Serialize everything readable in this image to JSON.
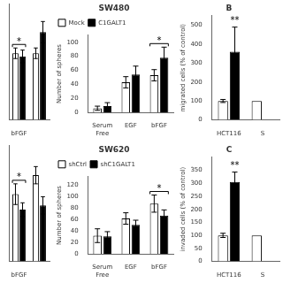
{
  "chart_data": [
    {
      "type": "bar",
      "categories": [
        "bFGF",
        null
      ],
      "series": [
        {
          "color": "#ffffff",
          "values": [
            63,
            63
          ],
          "errors": [
            5,
            5
          ]
        },
        {
          "color": "#000000",
          "values": [
            60,
            83
          ],
          "errors": [
            6,
            10
          ]
        }
      ],
      "ylim": [
        0,
        110
      ],
      "tick_labels": "x",
      "grid": false,
      "annotations": [
        {
          "text": "*",
          "category": "bFGF"
        }
      ]
    },
    {
      "type": "bar",
      "title": "SW480",
      "ylabel": "Number of spheres",
      "categories": [
        "Serum\nFree",
        "EGF",
        "bFGF"
      ],
      "series": [
        {
          "name": "Mock",
          "color": "#ffffff",
          "values": [
            6,
            43,
            53
          ],
          "errors": [
            3,
            8,
            8
          ]
        },
        {
          "name": "C1GALT1",
          "color": "#000000",
          "values": [
            9,
            54,
            78
          ],
          "errors": [
            5,
            12,
            15
          ]
        }
      ],
      "ylim": [
        0,
        110
      ],
      "yticks": [
        0,
        20,
        40,
        60,
        80,
        100
      ],
      "grid": false,
      "legend": "upper left",
      "annotations": [
        {
          "text": "*",
          "category": "bFGF"
        }
      ]
    },
    {
      "type": "bar",
      "title": "B",
      "ylabel": "migrated cells (% of control)",
      "categories": [
        "HCT116",
        "S"
      ],
      "series": [
        {
          "color": "#ffffff",
          "values": [
            100,
            100
          ],
          "errors": [
            8,
            null
          ]
        },
        {
          "name": "C1GALT1",
          "color": "#000000",
          "values": [
            360,
            null
          ],
          "errors": [
            130,
            null
          ]
        }
      ],
      "ylim": [
        0,
        550
      ],
      "yticks": [
        0,
        100,
        200,
        300,
        400,
        500
      ],
      "grid": false,
      "annotations": [
        {
          "text": "**",
          "category": "HCT116",
          "series": "C1GALT1"
        }
      ]
    },
    {
      "type": "bar",
      "categories": [
        "bFGF",
        null
      ],
      "series": [
        {
          "color": "#ffffff",
          "values": [
            78,
            100
          ],
          "errors": [
            12,
            10
          ]
        },
        {
          "color": "#000000",
          "values": [
            60,
            65
          ],
          "errors": [
            8,
            10
          ]
        }
      ],
      "ylim": [
        0,
        135
      ],
      "tick_labels": "x",
      "grid": false,
      "annotations": [
        {
          "text": "*",
          "category": "bFGF"
        }
      ]
    },
    {
      "type": "bar",
      "title": "SW620",
      "ylabel": "Number of spheres",
      "categories": [
        "Serum\nFree",
        "EGF",
        "bFGF"
      ],
      "series": [
        {
          "name": "shCtrl",
          "color": "#ffffff",
          "values": [
            32,
            62,
            88
          ],
          "errors": [
            12,
            10,
            15
          ]
        },
        {
          "name": "shC1GALT1",
          "color": "#000000",
          "values": [
            31,
            51,
            67
          ],
          "errors": [
            8,
            8,
            10
          ]
        }
      ],
      "ylim": [
        0,
        135
      ],
      "yticks": [
        0,
        20,
        40,
        60,
        80,
        100,
        120
      ],
      "grid": false,
      "legend": "upper left",
      "annotations": [
        {
          "text": "*",
          "category": "bFGF"
        }
      ]
    },
    {
      "type": "bar",
      "title": "C",
      "ylabel": "invaded cells (% of control)",
      "categories": [
        "HCT116",
        "S"
      ],
      "series": [
        {
          "color": "#ffffff",
          "values": [
            100,
            100
          ],
          "errors": [
            8,
            null
          ]
        },
        {
          "name": "C1GALT1",
          "color": "#000000",
          "values": [
            305,
            null
          ],
          "errors": [
            38,
            null
          ]
        }
      ],
      "ylim": [
        0,
        400
      ],
      "yticks": [
        0,
        50,
        100,
        150,
        200,
        250,
        300,
        350
      ],
      "grid": false,
      "annotations": [
        {
          "text": "**",
          "category": "HCT116",
          "series": "C1GALT1"
        }
      ]
    }
  ]
}
